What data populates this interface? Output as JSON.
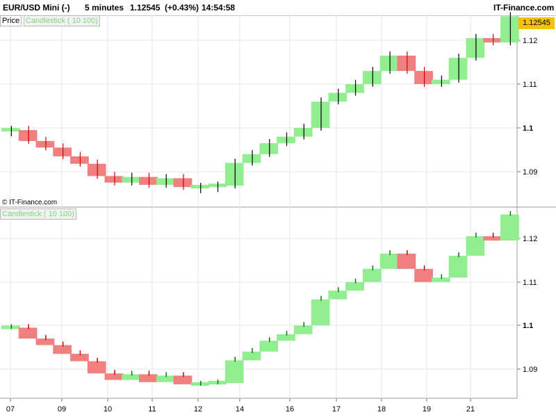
{
  "header": {
    "symbol": "EUR/USD Mini (-)",
    "timeframe": "5 minutes",
    "last_price": "1.12545",
    "change": "(+0.43%)",
    "time": "14:54:58",
    "brand": "IT-Finance.com"
  },
  "panels": {
    "price_tag": "Price",
    "indicator_label": "Candlestick ( 10 100)",
    "indicator_label_lower": "Candlestick ( 10 100)",
    "last_price_badge": "1.12545",
    "copyright": "© IT-Finance.com"
  },
  "colors": {
    "up": "#90ee90",
    "down": "#f08080",
    "wick_up": "#008000",
    "wick_down": "#cc0000",
    "grid": "#e6e6e6",
    "badge": "#f3c200"
  },
  "chart_data": [
    {
      "type": "line",
      "panel": "price",
      "series": [
        {
          "x": [
            "07",
            "07.5",
            "08",
            "08.5",
            "09",
            "09.5",
            "10",
            "10.5",
            "11",
            "11.5",
            "12",
            "12.5",
            "13",
            "13.5",
            "14",
            "14.5",
            "15",
            "15.5",
            "16",
            "16.5",
            "17",
            "17.5",
            "18",
            "18.5",
            "19",
            "19.5",
            "20",
            "20.5",
            "21",
            "21.5"
          ],
          "values": [
            1.0995,
            1.097,
            1.0955,
            1.0935,
            1.0918,
            1.089,
            1.0875,
            1.0888,
            1.087,
            1.0885,
            1.0865,
            1.0865,
            1.0868,
            1.092,
            1.094,
            1.0965,
            1.098,
            1.1,
            1.106,
            1.108,
            1.11,
            1.113,
            1.1165,
            1.113,
            1.11,
            1.111,
            1.116,
            1.1205,
            1.1195,
            1.1255
          ]
        }
      ],
      "yticks": [
        "1.12",
        "1.11",
        "1.1",
        "1.09"
      ],
      "ylim": [
        1.083,
        1.125
      ]
    },
    {
      "type": "bar",
      "panel": "indicator",
      "title": "Candlestick ( 10 100)",
      "series": [
        {
          "x": [
            "07",
            "07.5",
            "08",
            "08.5",
            "09",
            "09.5",
            "10",
            "10.5",
            "11",
            "11.5",
            "12",
            "12.5",
            "13",
            "13.5",
            "14",
            "14.5",
            "15",
            "15.5",
            "16",
            "16.5",
            "17",
            "17.5",
            "18",
            "18.5",
            "19",
            "19.5",
            "20",
            "20.5",
            "21",
            "21.5"
          ],
          "values": [
            1.0995,
            1.097,
            1.0955,
            1.0935,
            1.0918,
            1.089,
            1.0875,
            1.0888,
            1.087,
            1.0885,
            1.0865,
            1.0865,
            1.0868,
            1.092,
            1.094,
            1.0965,
            1.098,
            1.1,
            1.106,
            1.108,
            1.11,
            1.113,
            1.1165,
            1.113,
            1.11,
            1.111,
            1.116,
            1.1205,
            1.1195,
            1.1255
          ]
        }
      ],
      "yticks": [
        "1.12",
        "1.11",
        "1.1",
        "1.09"
      ],
      "ylim": [
        1.083,
        1.125
      ]
    }
  ],
  "x_axis": {
    "labels": [
      "07",
      "09",
      "10",
      "11",
      "12",
      "14",
      "16",
      "17",
      "18",
      "19",
      "21"
    ]
  }
}
